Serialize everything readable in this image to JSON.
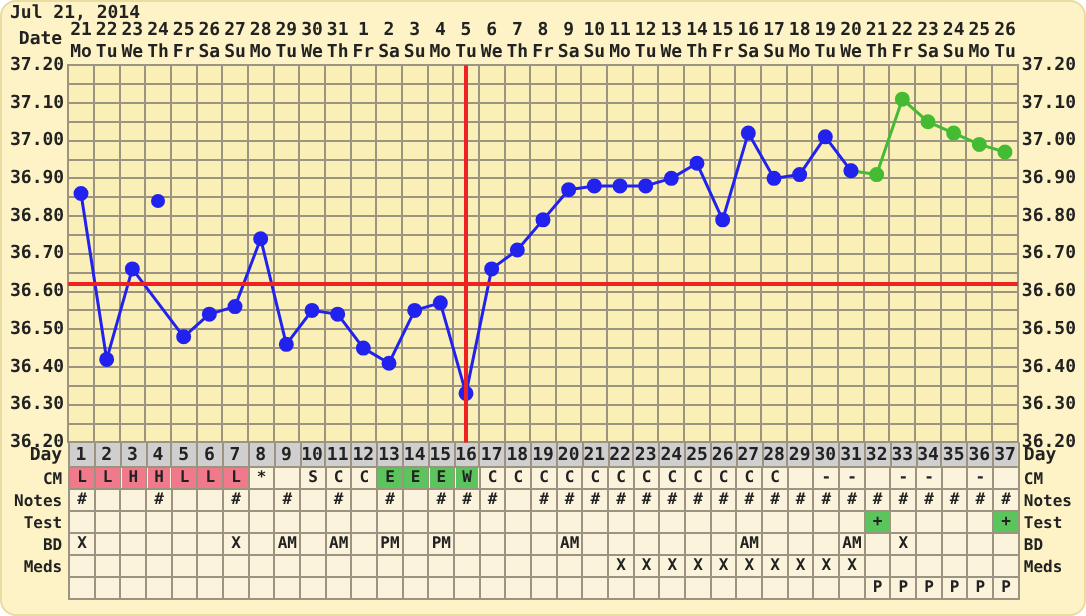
{
  "chart_data": [
    {
      "type": "line",
      "title": "Jul 21, 2014",
      "xlabel": "Date",
      "categories": [
        "21 Mo",
        "22 Tu",
        "23 We",
        "24 Th",
        "25 Fr",
        "26 Sa",
        "27 Su",
        "28 Mo",
        "29 Tu",
        "30 We",
        "31 Th",
        "1 Fr",
        "2 Sa",
        "3 Su",
        "4 Mo",
        "5 Tu",
        "6 We",
        "7 Th",
        "8 Fr",
        "9 Sa",
        "10 Su",
        "11 Mo",
        "12 Tu",
        "13 We",
        "14 Th",
        "15 Fr",
        "16 Sa",
        "17 Su",
        "18 Mo",
        "19 Tu",
        "20 We",
        "21 Th",
        "22 Fr",
        "23 Sa",
        "24 Su",
        "25 Mo",
        "26 Tu"
      ],
      "series": [
        {
          "color": "#2222ee",
          "values": [
            36.86,
            36.42,
            36.66,
            null,
            36.48,
            36.54,
            36.56,
            36.74,
            36.46,
            36.55,
            36.54,
            36.45,
            36.41,
            36.55,
            36.57,
            36.33,
            36.66,
            36.71,
            36.79,
            36.87,
            36.88,
            36.88,
            36.88,
            36.9,
            36.94,
            36.79,
            37.02,
            36.9,
            36.91,
            37.01,
            36.92,
            null,
            null,
            null,
            null,
            null,
            null
          ]
        },
        {
          "color": "#44bb33",
          "values": [
            null,
            null,
            null,
            null,
            null,
            null,
            null,
            null,
            null,
            null,
            null,
            null,
            null,
            null,
            null,
            null,
            null,
            null,
            null,
            null,
            null,
            null,
            null,
            null,
            null,
            null,
            null,
            null,
            null,
            null,
            36.92,
            36.91,
            37.11,
            37.05,
            37.02,
            36.99,
            36.97
          ]
        },
        {
          "type": "scatter",
          "color": "#2222ee",
          "x": [
            "24 Th"
          ],
          "values": [
            36.84
          ]
        }
      ],
      "ylim": [
        36.2,
        37.2
      ],
      "yticks": [
        {
          "value": 36.2,
          "label": "36.20"
        },
        {
          "value": 36.25,
          "label": null
        },
        {
          "value": 36.3,
          "label": "36.30"
        },
        {
          "value": 36.35,
          "label": null
        },
        {
          "value": 36.4,
          "label": "36.40"
        },
        {
          "value": 36.45,
          "label": null
        },
        {
          "value": 36.5,
          "label": "36.50"
        },
        {
          "value": 36.55,
          "label": null
        },
        {
          "value": 36.6,
          "label": "36.60"
        },
        {
          "value": 36.65,
          "label": null
        },
        {
          "value": 36.7,
          "label": "36.70"
        },
        {
          "value": 36.75,
          "label": null
        },
        {
          "value": 36.8,
          "label": "36.80"
        },
        {
          "value": 36.85,
          "label": null
        },
        {
          "value": 36.9,
          "label": "36.90"
        },
        {
          "value": 36.95,
          "label": null
        },
        {
          "value": 37.0,
          "label": "37.00"
        },
        {
          "value": 37.05,
          "label": null
        },
        {
          "value": 37.1,
          "label": "37.10"
        },
        {
          "value": 37.15,
          "label": null
        },
        {
          "value": 37.2,
          "label": "37.20"
        }
      ],
      "y2lim": [
        36.2,
        37.2
      ],
      "y2ticks": [
        {
          "value": 36.2,
          "label": "36.20"
        },
        {
          "value": 36.25,
          "label": null
        },
        {
          "value": 36.3,
          "label": "36.30"
        },
        {
          "value": 36.35,
          "label": null
        },
        {
          "value": 36.4,
          "label": "36.40"
        },
        {
          "value": 36.45,
          "label": null
        },
        {
          "value": 36.5,
          "label": "36.50"
        },
        {
          "value": 36.55,
          "label": null
        },
        {
          "value": 36.6,
          "label": "36.60"
        },
        {
          "value": 36.65,
          "label": null
        },
        {
          "value": 36.7,
          "label": "36.70"
        },
        {
          "value": 36.75,
          "label": null
        },
        {
          "value": 36.8,
          "label": "36.80"
        },
        {
          "value": 36.85,
          "label": null
        },
        {
          "value": 36.9,
          "label": "36.90"
        },
        {
          "value": 36.95,
          "label": null
        },
        {
          "value": 37.0,
          "label": "37.00"
        },
        {
          "value": 37.05,
          "label": null
        },
        {
          "value": 37.1,
          "label": "37.10"
        },
        {
          "value": 37.15,
          "label": null
        },
        {
          "value": 37.2,
          "label": "37.20"
        }
      ],
      "ref_lines": [
        {
          "axis": "y",
          "value": 36.62,
          "color": "#ee2222"
        },
        {
          "axis": "x",
          "value": "5 Tu",
          "color": "#ee2222"
        }
      ],
      "x2label": "Day",
      "x2lim": [
        0.5,
        37.5
      ],
      "x2ticks": [
        1,
        2,
        3,
        4,
        5,
        6,
        7,
        8,
        9,
        10,
        11,
        12,
        13,
        14,
        15,
        16,
        17,
        18,
        19,
        20,
        21,
        22,
        23,
        24,
        25,
        26,
        27,
        28,
        29,
        30,
        31,
        32,
        33,
        34,
        35,
        36,
        37
      ],
      "grid": true,
      "marker": "circle",
      "legend": false
    },
    {
      "type": "other",
      "y_categories": [
        "CM",
        "Notes",
        "Test",
        "BD",
        "Meds",
        null
      ],
      "y2_categories": [
        "CM",
        "Notes",
        "Test",
        "BD",
        "Meds",
        null
      ],
      "cell_labels": [
        [
          "L",
          "L",
          "H",
          "H",
          "L",
          "L",
          "L",
          "*",
          null,
          "S",
          "C",
          "C",
          "E",
          "E",
          "E",
          "W",
          "C",
          "C",
          "C",
          "C",
          "C",
          "C",
          "C",
          "C",
          "C",
          "C",
          "C",
          "C",
          null,
          "-",
          "-",
          null,
          "-",
          "-",
          null,
          "-",
          null
        ],
        [
          "#",
          null,
          null,
          "#",
          null,
          null,
          "#",
          null,
          "#",
          null,
          "#",
          null,
          "#",
          null,
          "#",
          "#",
          "#",
          null,
          "#",
          "#",
          "#",
          "#",
          "#",
          "#",
          "#",
          "#",
          "#",
          "#",
          "#",
          "#",
          "#",
          "#",
          "#",
          "#",
          "#",
          "#",
          "#"
        ],
        [
          null,
          null,
          null,
          null,
          null,
          null,
          null,
          null,
          null,
          null,
          null,
          null,
          null,
          null,
          null,
          null,
          null,
          null,
          null,
          null,
          null,
          null,
          null,
          null,
          null,
          null,
          null,
          null,
          null,
          null,
          null,
          "+",
          null,
          null,
          null,
          null,
          "+"
        ],
        [
          "X",
          null,
          null,
          null,
          null,
          null,
          "X",
          null,
          "AM",
          null,
          "AM",
          null,
          "PM",
          null,
          "PM",
          null,
          null,
          null,
          null,
          "AM",
          null,
          null,
          null,
          null,
          null,
          null,
          "AM",
          null,
          null,
          null,
          "AM",
          null,
          "X",
          null,
          null,
          null,
          null
        ],
        [
          null,
          null,
          null,
          null,
          null,
          null,
          null,
          null,
          null,
          null,
          null,
          null,
          null,
          null,
          null,
          null,
          null,
          null,
          null,
          null,
          null,
          "X",
          "X",
          "X",
          "X",
          "X",
          "X",
          "X",
          "X",
          "X",
          "X",
          null,
          null,
          null,
          null,
          null,
          null
        ],
        [
          null,
          null,
          null,
          null,
          null,
          null,
          null,
          null,
          null,
          null,
          null,
          null,
          null,
          null,
          null,
          null,
          null,
          null,
          null,
          null,
          null,
          null,
          null,
          null,
          null,
          null,
          null,
          null,
          null,
          null,
          null,
          "P",
          "P",
          "P",
          "P",
          "P",
          "P"
        ]
      ],
      "colors": [
        [
          "#f07a8c",
          "#f07a8c",
          "#f07a8c",
          "#f07a8c",
          "#f07a8c",
          "#f07a8c",
          "#f07a8c",
          null,
          null,
          null,
          null,
          null,
          "#5cc45c",
          "#5cc45c",
          "#5cc45c",
          "#5cc45c",
          null,
          null,
          null,
          null,
          null,
          null,
          null,
          null,
          null,
          null,
          null,
          null,
          null,
          null,
          null,
          null,
          null,
          null,
          null,
          null,
          null
        ],
        null,
        [
          null,
          null,
          null,
          null,
          null,
          null,
          null,
          null,
          null,
          null,
          null,
          null,
          null,
          null,
          null,
          null,
          null,
          null,
          null,
          null,
          null,
          null,
          null,
          null,
          null,
          null,
          null,
          null,
          null,
          null,
          null,
          "#5cc45c",
          null,
          null,
          null,
          null,
          "#5cc45c"
        ],
        null,
        null,
        null
      ]
    }
  ]
}
